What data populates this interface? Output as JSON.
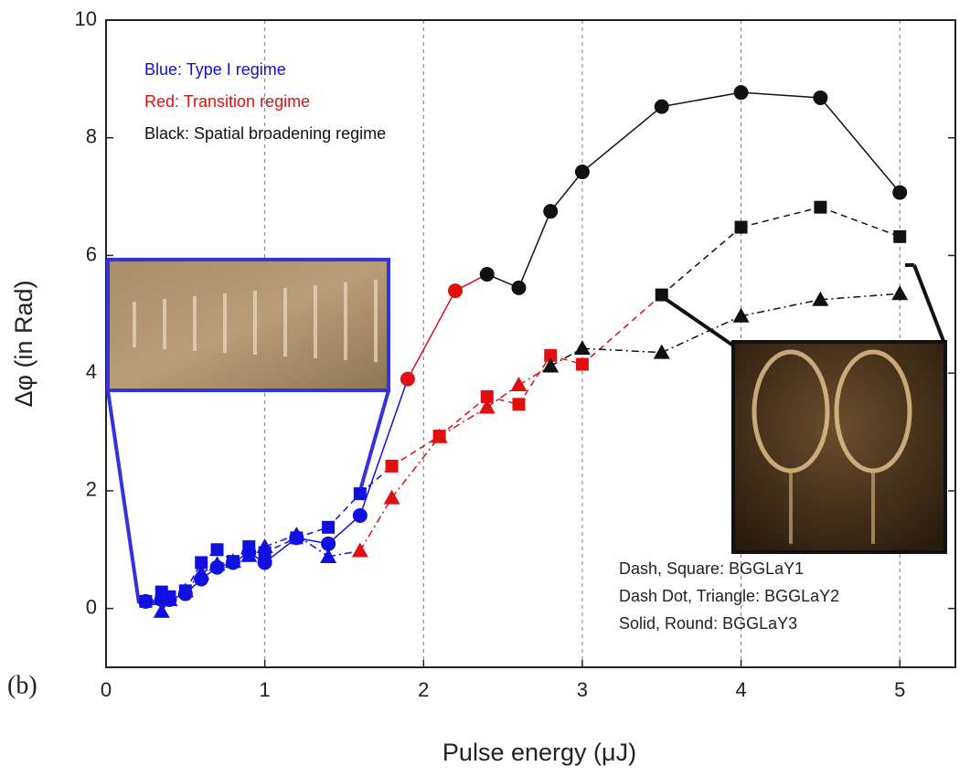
{
  "chart_data": {
    "type": "line",
    "x_label": "Pulse energy (μJ)",
    "y_label": "Δφ (in Rad)",
    "panel_label": "(b)",
    "xlim": [
      0,
      5.35
    ],
    "ylim": [
      -1,
      10
    ],
    "xticks": [
      0,
      1,
      2,
      3,
      4,
      5
    ],
    "yticks": [
      0,
      2,
      4,
      6,
      8,
      10
    ],
    "grid": "x",
    "annotations": [
      {
        "text": "Blue: Type I regime",
        "color": "#1010e0"
      },
      {
        "text": "Red: Transition regime",
        "color": "#e01010"
      },
      {
        "text": "Black: Spatial broadening regime",
        "color": "#111111"
      }
    ],
    "series": [
      {
        "name": "Dash, Square: BGGLaY1",
        "line": "dash",
        "marker": "square",
        "x": [
          0.25,
          0.35,
          0.4,
          0.5,
          0.6,
          0.7,
          0.8,
          0.9,
          1.0,
          1.2,
          1.4,
          1.6,
          1.8,
          2.1,
          2.4,
          2.6,
          2.8,
          3.0,
          3.5,
          4.0,
          4.5,
          5.0
        ],
        "values": [
          0.12,
          0.28,
          0.2,
          0.3,
          0.78,
          1.0,
          0.8,
          1.05,
          0.95,
          1.2,
          1.38,
          1.95,
          2.42,
          2.93,
          3.6,
          3.47,
          4.3,
          4.15,
          5.33,
          6.48,
          6.82,
          6.32
        ],
        "point_colors": [
          "#1010e0",
          "#1010e0",
          "#1010e0",
          "#1010e0",
          "#1010e0",
          "#1010e0",
          "#1010e0",
          "#1010e0",
          "#1010e0",
          "#1010e0",
          "#1010e0",
          "#1010e0",
          "#e01010",
          "#e01010",
          "#e01010",
          "#e01010",
          "#e01010",
          "#e01010",
          "#111111",
          "#111111",
          "#111111",
          "#111111"
        ]
      },
      {
        "name": "Dash Dot, Triangle: BGGLaY2",
        "line": "dashdot",
        "marker": "triangle",
        "x": [
          0.35,
          0.4,
          0.5,
          0.6,
          0.7,
          0.8,
          0.9,
          1.0,
          1.2,
          1.4,
          1.6,
          1.8,
          2.1,
          2.4,
          2.6,
          2.8,
          3.0,
          3.5,
          4.0,
          4.5,
          5.0
        ],
        "values": [
          -0.05,
          0.15,
          0.3,
          0.6,
          0.75,
          0.8,
          0.9,
          1.05,
          1.25,
          0.88,
          0.98,
          1.88,
          2.92,
          3.42,
          3.8,
          4.12,
          4.42,
          4.35,
          4.97,
          5.25,
          5.35
        ],
        "point_colors": [
          "#1010e0",
          "#1010e0",
          "#1010e0",
          "#1010e0",
          "#1010e0",
          "#1010e0",
          "#1010e0",
          "#1010e0",
          "#1010e0",
          "#1010e0",
          "#e01010",
          "#e01010",
          "#e01010",
          "#e01010",
          "#e01010",
          "#111111",
          "#111111",
          "#111111",
          "#111111",
          "#111111",
          "#111111"
        ]
      },
      {
        "name": "Solid, Round: BGGLaY3",
        "line": "solid",
        "marker": "circle",
        "x": [
          0.25,
          0.35,
          0.4,
          0.5,
          0.6,
          0.7,
          0.8,
          0.9,
          1.0,
          1.2,
          1.4,
          1.6,
          1.9,
          2.2,
          2.4,
          2.6,
          2.8,
          3.0,
          3.5,
          4.0,
          4.5,
          5.0
        ],
        "values": [
          0.12,
          0.15,
          0.15,
          0.25,
          0.5,
          0.7,
          0.78,
          0.95,
          0.78,
          1.2,
          1.1,
          1.58,
          3.9,
          5.4,
          5.68,
          5.45,
          6.75,
          7.42,
          8.53,
          8.77,
          8.68,
          7.07
        ],
        "point_colors": [
          "#1010e0",
          "#1010e0",
          "#1010e0",
          "#1010e0",
          "#1010e0",
          "#1010e0",
          "#1010e0",
          "#1010e0",
          "#1010e0",
          "#1010e0",
          "#1010e0",
          "#1010e0",
          "#e01010",
          "#e01010",
          "#111111",
          "#111111",
          "#111111",
          "#111111",
          "#111111",
          "#111111",
          "#111111",
          "#111111"
        ]
      }
    ]
  }
}
